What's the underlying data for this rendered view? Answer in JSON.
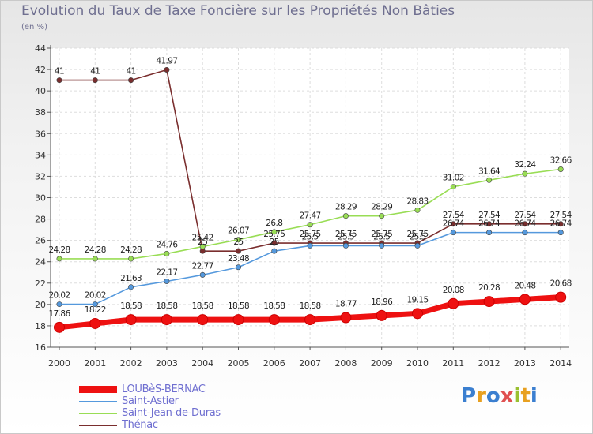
{
  "title": "Evolution du Taux de Taxe Foncière sur les Propriétés Non Bâties",
  "unit_label": "(en %)",
  "logo_text": "Proxiti",
  "chart_data": {
    "type": "line",
    "title": "Evolution du Taux de Taxe Foncière sur les Propriétés Non Bâties",
    "ylabel": "(en %)",
    "xlabel": "",
    "x": [
      "2000",
      "2001",
      "2002",
      "2003",
      "2004",
      "2005",
      "2006",
      "2007",
      "2008",
      "2009",
      "2010",
      "2011",
      "2012",
      "2013",
      "2014"
    ],
    "ylim": [
      16,
      44
    ],
    "yticks": [
      "16",
      "18",
      "20",
      "22",
      "24",
      "26",
      "28",
      "30",
      "32",
      "34",
      "36",
      "38",
      "40",
      "42",
      "44"
    ],
    "grid": true,
    "legend_position": "bottom-left",
    "series": [
      {
        "name": "Thénac",
        "color": "#7a2e2e",
        "values": [
          41,
          41,
          41,
          41.97,
          25,
          25,
          25.75,
          25.75,
          25.75,
          25.75,
          25.75,
          27.54,
          27.54,
          27.54,
          27.54
        ],
        "labels": [
          "41",
          "41",
          "41",
          "41.97",
          "25",
          "25",
          "25.75",
          "25.75",
          "25.75",
          "25.75",
          "25.75",
          "27.54",
          "27.54",
          "27.54",
          "27.54"
        ]
      },
      {
        "name": "Saint-Jean-de-Duras",
        "color": "#99dd55",
        "values": [
          24.28,
          24.28,
          24.28,
          24.76,
          25.42,
          26.07,
          26.8,
          27.47,
          28.29,
          28.29,
          28.83,
          31.02,
          31.64,
          32.24,
          32.66
        ],
        "labels": [
          "24.28",
          "24.28",
          "24.28",
          "24.76",
          "25.42",
          "26.07",
          "26.8",
          "27.47",
          "28.29",
          "28.29",
          "28.83",
          "31.02",
          "31.64",
          "32.24",
          "32.66"
        ]
      },
      {
        "name": "Saint-Astier",
        "color": "#5599dd",
        "values": [
          20.02,
          20.02,
          21.63,
          22.17,
          22.77,
          23.48,
          25,
          25.5,
          25.5,
          25.5,
          25.5,
          26.74,
          26.74,
          26.74,
          26.74
        ],
        "labels": [
          "20.02",
          "20.02",
          "21.63",
          "22.17",
          "22.77",
          "23.48",
          "25",
          "25.5",
          "25.5",
          "25.5",
          "25.5",
          "26.74",
          "26.74",
          "26.74",
          "26.74"
        ]
      },
      {
        "name": "LOUBèS-BERNAC",
        "color": "#ee1111",
        "values": [
          17.86,
          18.22,
          18.58,
          18.58,
          18.58,
          18.58,
          18.58,
          18.58,
          18.77,
          18.96,
          19.15,
          20.08,
          20.28,
          20.48,
          20.68
        ],
        "labels": [
          "17.86",
          "18.22",
          "18.58",
          "18.58",
          "18.58",
          "18.58",
          "18.58",
          "18.58",
          "18.77",
          "18.96",
          "19.15",
          "20.08",
          "20.28",
          "20.48",
          "20.68"
        ]
      }
    ]
  },
  "legend": [
    {
      "name": "LOUBèS-BERNAC",
      "color": "#ee1111"
    },
    {
      "name": "Saint-Astier",
      "color": "#5599dd"
    },
    {
      "name": "Saint-Jean-de-Duras",
      "color": "#99dd55"
    },
    {
      "name": "Thénac",
      "color": "#7a2e2e"
    }
  ]
}
